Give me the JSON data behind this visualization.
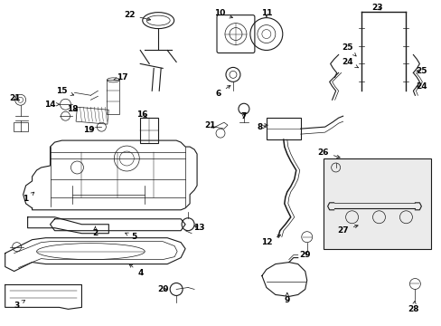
{
  "bg_color": "#ffffff",
  "line_color": "#1a1a1a",
  "label_color": "#000000",
  "fig_width": 4.89,
  "fig_height": 3.6,
  "dpi": 100,
  "lw": 0.8,
  "lw_thin": 0.5,
  "fs": 6.5
}
